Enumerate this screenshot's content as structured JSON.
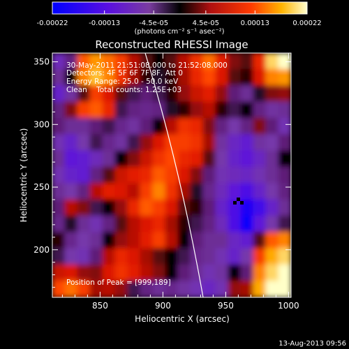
{
  "chart_data": {
    "type": "heatmap",
    "title": "Reconstructed RHESSI Image",
    "xlabel": "Heliocentric X (arcsec)",
    "ylabel": "Heliocentric Y (arcsec)",
    "xlim": [
      812,
      1002
    ],
    "ylim": [
      162,
      357
    ],
    "xticks": [
      850,
      900,
      950,
      1000
    ],
    "yticks": [
      200,
      250,
      300,
      350
    ],
    "colorbar": {
      "min": -0.00022,
      "max": 0.00022,
      "tick_labels": [
        "-0.00022",
        "-0.00013",
        "-4.5e-05",
        "4.5e-05",
        "0.00013",
        "0.00022"
      ],
      "unit_text": "(photons cm⁻² s⁻¹ asec⁻²)"
    },
    "annotations": {
      "time_range": "30-May-2011 21:51:08.000 to 21:52:08.000",
      "detectors": "Detectors: 4F 5F 6F 7F 8F, Att 0",
      "energy": "Energy Range: 25.0 - 50.0 keV",
      "method": "Clean    Total counts: 1.25E+03",
      "peak": "Position of Peak = [999,189]"
    },
    "footer_date": "13-Aug-2013 09:56",
    "grid": false,
    "z_grid_description": "rows from top (y=357) to bottom (y=162), cols from left (x=812) to right (x=1002); values in units of 1e-5",
    "z": [
      [
        -10,
        -4,
        14,
        17,
        15,
        12,
        6,
        2,
        0,
        2,
        6,
        11,
        15,
        9,
        3,
        2,
        10,
        20,
        22
      ],
      [
        -6,
        0,
        16,
        19,
        16,
        11,
        5,
        1,
        -1,
        1,
        5,
        10,
        13,
        8,
        2,
        1,
        8,
        16,
        17
      ],
      [
        -12,
        -7,
        2,
        12,
        8,
        2,
        -2,
        -3,
        -2,
        1,
        4,
        7,
        9,
        4,
        -3,
        -6,
        -1,
        3,
        4
      ],
      [
        -4,
        3,
        12,
        14,
        10,
        -2,
        -4,
        -5,
        -4,
        -1,
        1,
        4,
        6,
        1,
        -2,
        0,
        -4,
        -7,
        -6
      ],
      [
        -3,
        -6,
        -6,
        -3,
        -2,
        -5,
        -7,
        -3,
        0,
        6,
        11,
        10,
        3,
        -4,
        -8,
        -4,
        3,
        -3,
        -9
      ],
      [
        -9,
        -12,
        -8,
        -2,
        -5,
        -7,
        -2,
        4,
        8,
        12,
        12,
        11,
        5,
        -7,
        -11,
        -13,
        -7,
        -8,
        -3
      ],
      [
        -6,
        -14,
        -13,
        -10,
        -6,
        0,
        3,
        7,
        11,
        13,
        10,
        9,
        2,
        -8,
        -12,
        -14,
        -11,
        -6,
        0
      ],
      [
        -9,
        -12,
        -13,
        -4,
        2,
        7,
        9,
        10,
        14,
        12,
        8,
        3,
        -3,
        -9,
        -10,
        -11,
        -9,
        -6,
        -3
      ],
      [
        -6,
        -8,
        -4,
        6,
        9,
        8,
        6,
        12,
        16,
        11,
        5,
        -1,
        -5,
        -10,
        -14,
        -16,
        -12,
        -8,
        -4
      ],
      [
        -3,
        6,
        3,
        -2,
        0,
        4,
        10,
        14,
        12,
        8,
        2,
        1,
        -3,
        -12,
        -16,
        -20,
        -17,
        -12,
        -6
      ],
      [
        -5,
        -1,
        -6,
        -9,
        -4,
        2,
        6,
        8,
        10,
        5,
        1,
        -2,
        -4,
        -10,
        -16,
        -21,
        -14,
        -8,
        -2
      ],
      [
        1,
        -5,
        -8,
        -6,
        0,
        4,
        6,
        9,
        12,
        6,
        0,
        -3,
        -6,
        -6,
        -11,
        -13,
        2,
        14,
        16
      ],
      [
        -2,
        -8,
        -9,
        -3,
        6,
        10,
        8,
        5,
        2,
        0,
        -2,
        -5,
        -6,
        -9,
        -12,
        -8,
        12,
        18,
        20
      ],
      [
        7,
        8,
        4,
        3,
        8,
        11,
        9,
        6,
        3,
        0,
        -3,
        -6,
        -9,
        -7,
        0,
        -3,
        16,
        20,
        22
      ],
      [
        13,
        15,
        12,
        5,
        6,
        4,
        -2,
        -4,
        -6,
        -5,
        -7,
        -9,
        -11,
        -9,
        4,
        5,
        18,
        22,
        22
      ]
    ]
  }
}
